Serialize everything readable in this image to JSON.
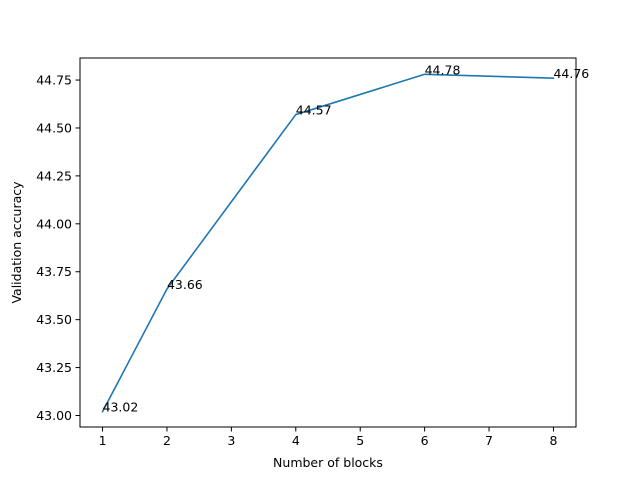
{
  "chart_data": {
    "type": "line",
    "title": "",
    "xlabel": "Number of blocks",
    "ylabel": "Validation accuracy",
    "x": [
      1,
      2,
      4,
      6,
      8
    ],
    "series": [
      {
        "values": [
          43.02,
          43.66,
          44.57,
          44.78,
          44.76
        ],
        "color": "#1f77b4"
      }
    ],
    "data_labels": [
      "43.02",
      "43.66",
      "44.57",
      "44.78",
      "44.76"
    ],
    "xlim": [
      0.65,
      8.35
    ],
    "ylim": [
      42.94,
      44.865
    ],
    "x_ticks": [
      1,
      2,
      3,
      4,
      5,
      6,
      7,
      8
    ],
    "x_tick_labels": [
      "1",
      "2",
      "3",
      "4",
      "5",
      "6",
      "7",
      "8"
    ],
    "y_ticks": [
      43.0,
      43.25,
      43.5,
      43.75,
      44.0,
      44.25,
      44.5,
      44.75
    ],
    "y_tick_labels": [
      "43.00",
      "43.25",
      "43.50",
      "43.75",
      "44.00",
      "44.25",
      "44.50",
      "44.75"
    ],
    "grid": false,
    "legend": false
  }
}
